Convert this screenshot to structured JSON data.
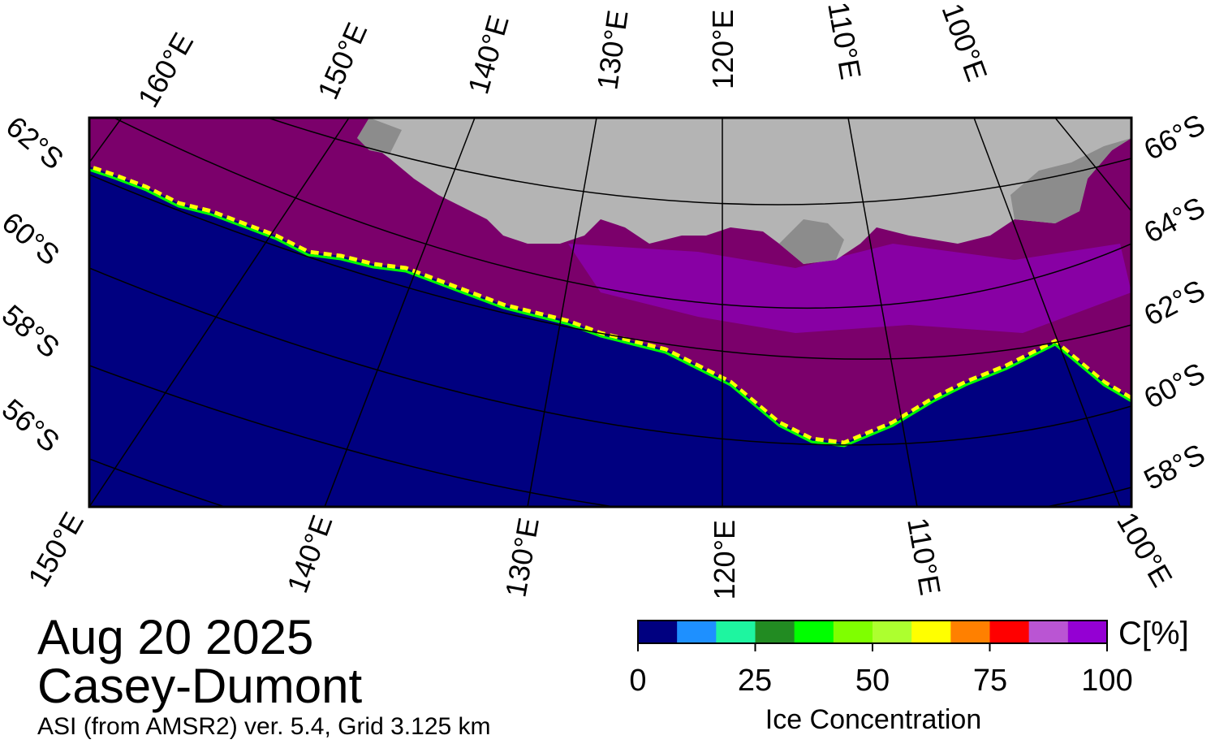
{
  "map": {
    "date": "Aug 20 2025",
    "region": "Casey-Dumont",
    "source": "ASI (from AMSR2) ver. 5.4,  Grid 3.125 km",
    "top_lon_labels": [
      "160°E",
      "150°E",
      "140°E",
      "130°E",
      "120°E",
      "110°E",
      "100°E"
    ],
    "bottom_lon_labels": [
      "150°E",
      "140°E",
      "130°E",
      "120°E",
      "110°E",
      "100°E"
    ],
    "left_lat_labels": [
      "62°S",
      "60°S",
      "58°S",
      "56°S"
    ],
    "right_lat_labels": [
      "66°S",
      "64°S",
      "62°S",
      "60°S",
      "58°S"
    ],
    "colors": {
      "ocean": "#000080",
      "land": "#b4b4b4",
      "ice_shelf": "#8c8c8c",
      "high_ice": "#7b006b",
      "frame": "#000000"
    }
  },
  "colorbar": {
    "title": "Ice Concentration",
    "unit": "C[%]",
    "ticks": [
      "0",
      "25",
      "50",
      "75",
      "100"
    ],
    "min": 0,
    "max": 100,
    "colors": [
      "#000080",
      "#1e90ff",
      "#1ef5a0",
      "#228b22",
      "#00ff00",
      "#7fff00",
      "#adff2f",
      "#ffff00",
      "#ff8000",
      "#ff0000",
      "#ba55d3",
      "#9400d3"
    ]
  }
}
